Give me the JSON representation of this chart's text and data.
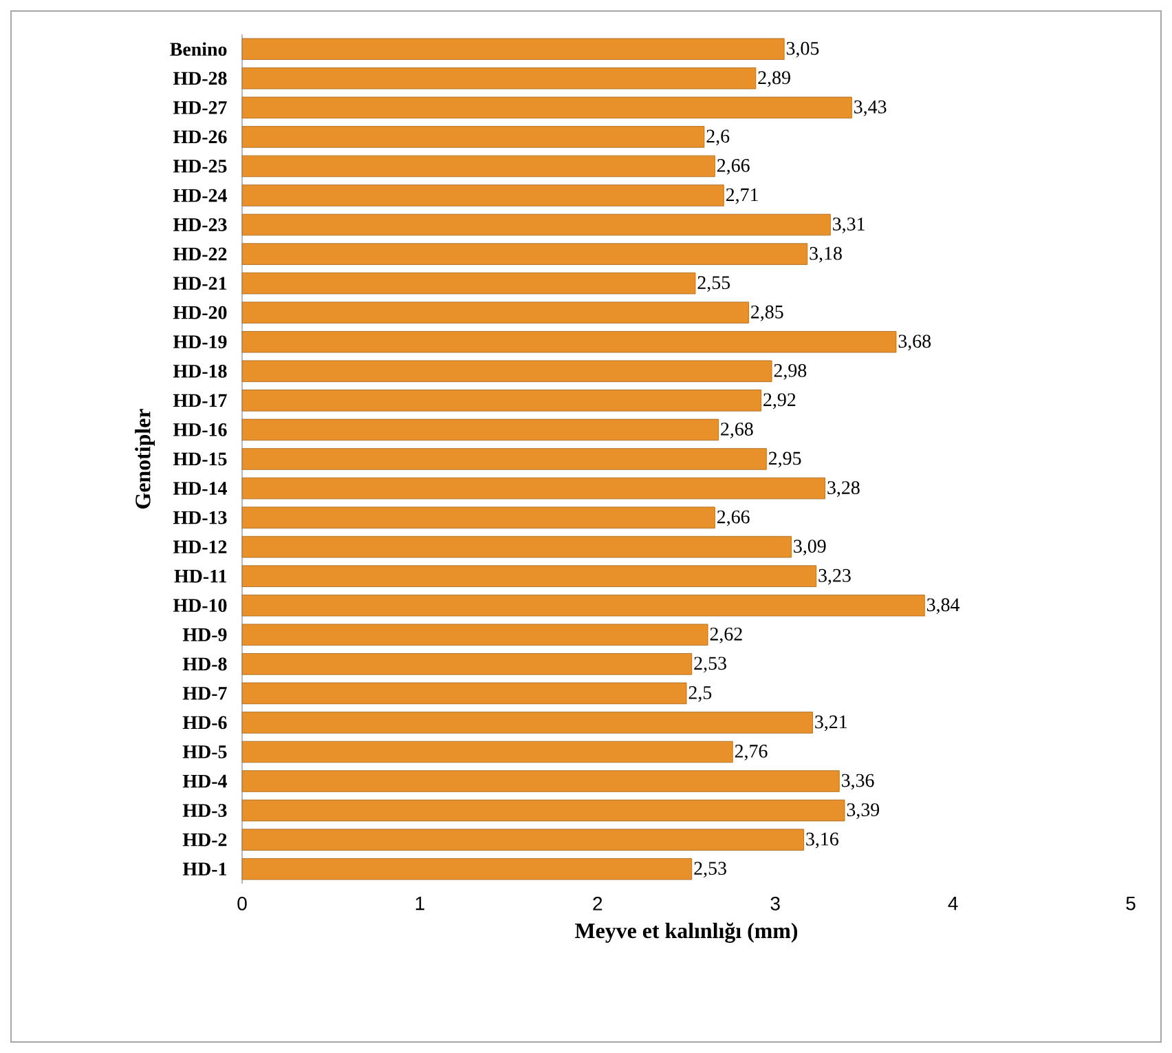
{
  "chart_data": {
    "type": "bar",
    "orientation": "horizontal",
    "xlabel": "Meyve et kalınlığı (mm)",
    "ylabel": "Genotipler",
    "categories": [
      "Benino",
      "HD-28",
      "HD-27",
      "HD-26",
      "HD-25",
      "HD-24",
      "HD-23",
      "HD-22",
      "HD-21",
      "HD-20",
      "HD-19",
      "HD-18",
      "HD-17",
      "HD-16",
      "HD-15",
      "HD-14",
      "HD-13",
      "HD-12",
      "HD-11",
      "HD-10",
      "HD-9",
      "HD-8",
      "HD-7",
      "HD-6",
      "HD-5",
      "HD-4",
      "HD-3",
      "HD-2",
      "HD-1"
    ],
    "values": [
      3.05,
      2.89,
      3.43,
      2.6,
      2.66,
      2.71,
      3.31,
      3.18,
      2.55,
      2.85,
      3.68,
      2.98,
      2.92,
      2.68,
      2.95,
      3.28,
      2.66,
      3.09,
      3.23,
      3.84,
      2.62,
      2.53,
      2.5,
      3.21,
      2.76,
      3.36,
      3.39,
      3.16,
      2.53
    ],
    "value_labels": [
      "3,05",
      "2,89",
      "3,43",
      "2,6",
      "2,66",
      "2,71",
      "3,31",
      "3,18",
      "2,55",
      "2,85",
      "3,68",
      "2,98",
      "2,92",
      "2,68",
      "2,95",
      "3,28",
      "2,66",
      "3,09",
      "3,23",
      "3,84",
      "2,62",
      "2,53",
      "2,5",
      "3,21",
      "2,76",
      "3,36",
      "3,39",
      "3,16",
      "2,53"
    ],
    "color": "#e8902a",
    "xlim": [
      0,
      5
    ],
    "xticks": [
      0,
      1,
      2,
      3,
      4,
      5
    ]
  }
}
